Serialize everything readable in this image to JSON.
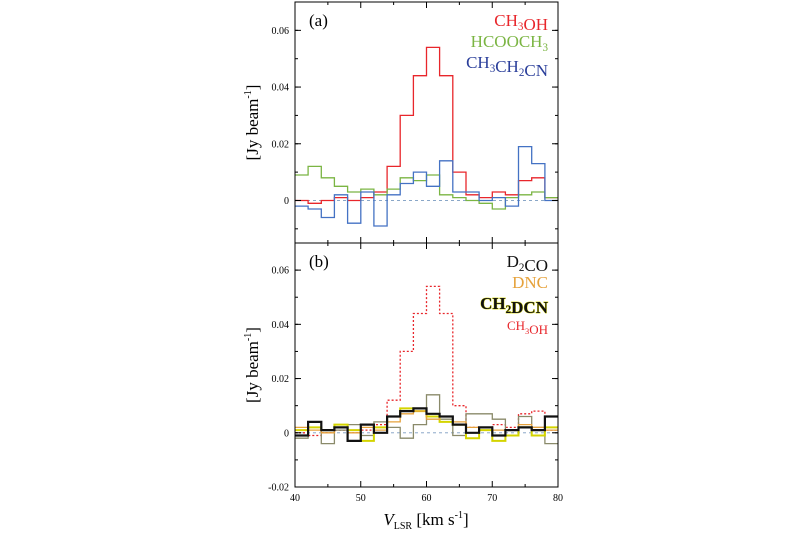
{
  "chart_data": [
    {
      "type": "line",
      "panel_label": "(a)",
      "ylabel": "[Jy beam",
      "ylabel_sup": "-1",
      "ylabel_close": "]",
      "xlim": [
        40,
        80
      ],
      "ylim": [
        -0.015,
        0.07
      ],
      "xticks": [
        40,
        50,
        60,
        70,
        80
      ],
      "yticks": [
        0,
        0.02,
        0.04,
        0.06
      ],
      "ytick_labels": [
        "0",
        "0.02",
        "0.04",
        "0.06"
      ],
      "step": 2,
      "legend_position": "top-right",
      "legend": [
        {
          "parts": [
            [
              "CH",
              ""
            ],
            [
              "3",
              "sub"
            ],
            [
              "OH",
              ""
            ]
          ],
          "color": "#e8262b"
        },
        {
          "parts": [
            [
              "HCOOCH",
              ""
            ],
            [
              "3",
              "sub"
            ]
          ],
          "color": "#7bb543"
        },
        {
          "parts": [
            [
              "CH",
              ""
            ],
            [
              "3",
              "sub"
            ],
            [
              "CH",
              ""
            ],
            [
              "2",
              "sub"
            ],
            [
              "CN",
              ""
            ]
          ],
          "color": "#2a3e9a"
        }
      ],
      "series": [
        {
          "color": "#e8262b",
          "x": [
            40,
            42,
            44,
            46,
            48,
            50,
            52,
            54,
            56,
            58,
            60,
            62,
            64,
            66,
            68,
            70,
            72,
            74,
            76,
            78
          ],
          "y": [
            0,
            -0.001,
            0,
            0.001,
            0,
            0.001,
            0.003,
            0.012,
            0.03,
            0.044,
            0.054,
            0.044,
            0.01,
            0.002,
            0.001,
            0.003,
            0.002,
            0.007,
            0.008,
            0.001
          ]
        },
        {
          "color": "#7bb543",
          "x": [
            40,
            42,
            44,
            46,
            48,
            50,
            52,
            54,
            56,
            58,
            60,
            62,
            64,
            66,
            68,
            70,
            72,
            74,
            76,
            78
          ],
          "y": [
            0.009,
            0.012,
            0.008,
            0.005,
            0.003,
            0.004,
            0.002,
            0.004,
            0.008,
            0.007,
            0.009,
            0.002,
            0.001,
            0.0,
            -0.001,
            -0.003,
            0.001,
            0.002,
            0.003,
            0.001
          ]
        },
        {
          "color": "#4472c4",
          "x": [
            40,
            42,
            44,
            46,
            48,
            50,
            52,
            54,
            56,
            58,
            60,
            62,
            64,
            66,
            68,
            70,
            72,
            74,
            76,
            78
          ],
          "y": [
            -0.002,
            -0.003,
            -0.006,
            0.002,
            -0.008,
            0.003,
            -0.009,
            0.002,
            0.006,
            0.01,
            0.005,
            0.014,
            0.003,
            0.003,
            0.0,
            0.001,
            -0.002,
            0.019,
            0.013,
            0.0
          ]
        }
      ]
    },
    {
      "type": "line",
      "panel_label": "(b)",
      "ylabel": "[Jy beam",
      "ylabel_sup": "-1",
      "ylabel_close": "]",
      "xlabel_main": "V",
      "xlabel_sub": "LSR",
      "xlabel_units": " [km s",
      "xlabel_sup": "-1",
      "xlabel_close": "]",
      "xlim": [
        40,
        80
      ],
      "ylim": [
        -0.02,
        0.07
      ],
      "xticks": [
        40,
        50,
        60,
        70,
        80
      ],
      "xtick_labels": [
        "40",
        "50",
        "60",
        "70",
        "80"
      ],
      "yticks": [
        -0.02,
        0,
        0.02,
        0.04,
        0.06
      ],
      "ytick_labels": [
        "-0.02",
        "0",
        "0.02",
        "0.04",
        "0.06"
      ],
      "step": 2,
      "legend_position": "top-right",
      "legend": [
        {
          "parts": [
            [
              "D",
              ""
            ],
            [
              "2",
              "sub"
            ],
            [
              "CO",
              ""
            ]
          ],
          "color": "#111111"
        },
        {
          "parts": [
            [
              "DNC",
              ""
            ]
          ],
          "color": "#e6a23c"
        },
        {
          "parts": [
            [
              "CH",
              ""
            ],
            [
              "2",
              "sub"
            ],
            [
              "DCN",
              ""
            ]
          ],
          "color": "#111111",
          "outline": "#d4d400",
          "bold": true
        },
        {
          "parts": [
            [
              "CH",
              ""
            ],
            [
              "3",
              "sub"
            ],
            [
              "OH",
              ""
            ]
          ],
          "color": "#e8262b",
          "small": true
        }
      ],
      "series": [
        {
          "color": "#e8262b",
          "dashed": true,
          "x": [
            40,
            42,
            44,
            46,
            48,
            50,
            52,
            54,
            56,
            58,
            60,
            62,
            64,
            66,
            68,
            70,
            72,
            74,
            76,
            78
          ],
          "y": [
            0,
            -0.001,
            0,
            0.001,
            0,
            0.001,
            0.003,
            0.012,
            0.03,
            0.044,
            0.054,
            0.044,
            0.01,
            0.002,
            0.001,
            0.003,
            0.002,
            0.007,
            0.008,
            0.001
          ]
        },
        {
          "color": "#8a8a6a",
          "x": [
            40,
            42,
            44,
            46,
            48,
            50,
            52,
            54,
            56,
            58,
            60,
            62,
            64,
            66,
            68,
            70,
            72,
            74,
            76,
            78
          ],
          "y": [
            -0.002,
            0.002,
            -0.004,
            0.001,
            0.003,
            -0.001,
            0.004,
            0.002,
            -0.002,
            0.003,
            0.014,
            0.005,
            -0.001,
            0.007,
            0.007,
            0.005,
            -0.001,
            0.006,
            0.002,
            -0.004
          ]
        },
        {
          "color": "#d4d400",
          "width": 2,
          "x": [
            40,
            42,
            44,
            46,
            48,
            50,
            52,
            54,
            56,
            58,
            60,
            62,
            64,
            66,
            68,
            70,
            72,
            74,
            76,
            78
          ],
          "y": [
            0.001,
            0.002,
            0.001,
            0.003,
            0.001,
            -0.003,
            0.002,
            0.006,
            0.009,
            0.008,
            0.006,
            0.004,
            0.003,
            -0.002,
            0.001,
            -0.003,
            -0.001,
            0.002,
            -0.001,
            0.002
          ]
        },
        {
          "color": "#e6a23c",
          "x": [
            40,
            42,
            44,
            46,
            48,
            50,
            52,
            54,
            56,
            58,
            60,
            62,
            64,
            66,
            68,
            70,
            72,
            74,
            76,
            78
          ],
          "y": [
            0.002,
            0.001,
            0.0,
            0.002,
            0.0,
            0.002,
            0.001,
            0.004,
            0.007,
            0.008,
            0.005,
            0.006,
            0.004,
            0.002,
            0.002,
            0.001,
            0.001,
            0.003,
            0.002,
            0.001
          ]
        },
        {
          "color": "#111111",
          "width": 2.2,
          "x": [
            40,
            42,
            44,
            46,
            48,
            50,
            52,
            54,
            56,
            58,
            60,
            62,
            64,
            66,
            68,
            70,
            72,
            74,
            76,
            78
          ],
          "y": [
            -0.001,
            0.004,
            0.001,
            0.002,
            -0.003,
            0.003,
            0.0,
            0.006,
            0.008,
            0.009,
            0.007,
            0.006,
            0.003,
            0.0,
            0.002,
            -0.001,
            0.001,
            0.002,
            0.001,
            0.006
          ]
        }
      ]
    }
  ]
}
